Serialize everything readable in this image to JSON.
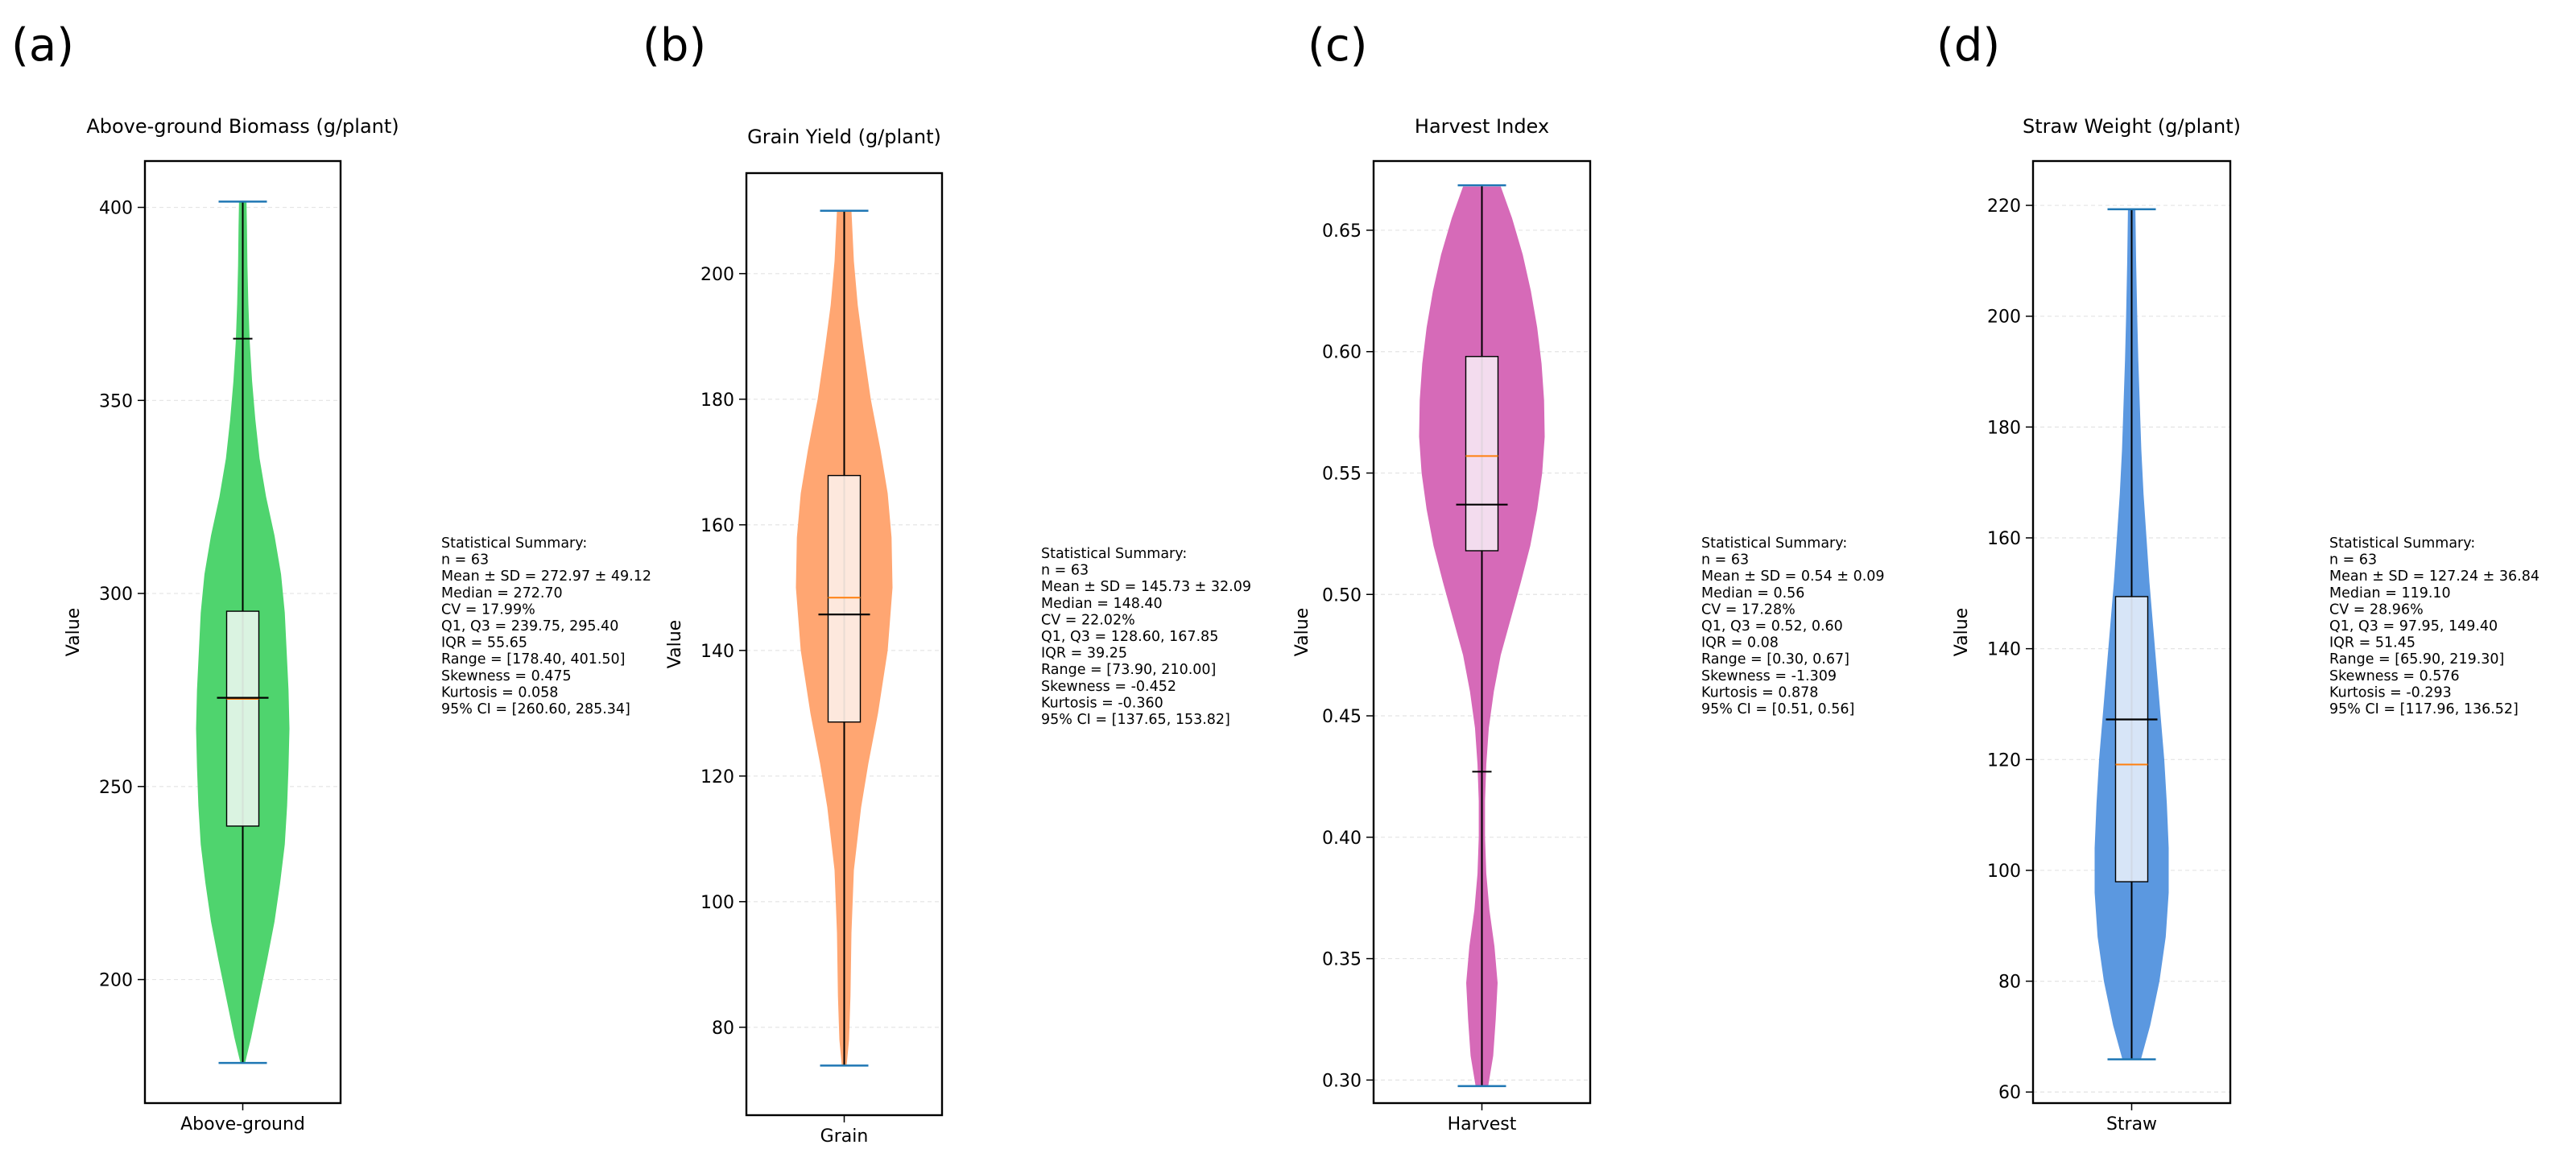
{
  "chart_data": [
    {
      "type": "violin",
      "panel_label": "(a)",
      "title": "Above-ground Biomass (g/plant)",
      "ylabel": "Value",
      "xtick": "Above-ground",
      "ylim": [
        168,
        412
      ],
      "yticks": [
        200,
        250,
        300,
        350,
        400
      ],
      "color": "#4fd46e",
      "box_color": "#e6f5ea",
      "min": 178.4,
      "max": 401.5,
      "q1": 239.75,
      "median": 272.7,
      "q3": 295.4,
      "mean": 272.97,
      "outlier_mark": 366,
      "density": [
        [
          178.4,
          0.05
        ],
        [
          185,
          0.18
        ],
        [
          195,
          0.35
        ],
        [
          205,
          0.52
        ],
        [
          215,
          0.68
        ],
        [
          225,
          0.8
        ],
        [
          235,
          0.9
        ],
        [
          245,
          0.95
        ],
        [
          255,
          0.98
        ],
        [
          265,
          1.0
        ],
        [
          275,
          0.98
        ],
        [
          285,
          0.94
        ],
        [
          295,
          0.9
        ],
        [
          305,
          0.82
        ],
        [
          315,
          0.68
        ],
        [
          325,
          0.5
        ],
        [
          335,
          0.36
        ],
        [
          345,
          0.27
        ],
        [
          355,
          0.2
        ],
        [
          365,
          0.15
        ],
        [
          375,
          0.12
        ],
        [
          385,
          0.1
        ],
        [
          395,
          0.09
        ],
        [
          401.5,
          0.08
        ]
      ],
      "stats_title": "Statistical Summary:",
      "stats": [
        "n = 63",
        "Mean ± SD = 272.97 ± 49.12",
        "Median = 272.70",
        "CV = 17.99%",
        "Q1, Q3 = 239.75, 295.40",
        "IQR = 55.65",
        "Range = [178.40, 401.50]",
        "Skewness = 0.475",
        "Kurtosis = 0.058",
        "95% CI = [260.60, 285.34]"
      ]
    },
    {
      "type": "violin",
      "panel_label": "(b)",
      "title": "Grain Yield (g/plant)",
      "ylabel": "Value",
      "xtick": "Grain",
      "ylim": [
        66,
        216
      ],
      "yticks": [
        80,
        100,
        120,
        140,
        160,
        180,
        200
      ],
      "color": "#ffa672",
      "box_color": "#fdeee6",
      "min": 73.9,
      "max": 210.0,
      "q1": 128.6,
      "median": 148.4,
      "q3": 167.85,
      "mean": 145.73,
      "density": [
        [
          73.9,
          0.05
        ],
        [
          78,
          0.1
        ],
        [
          85,
          0.13
        ],
        [
          95,
          0.15
        ],
        [
          105,
          0.2
        ],
        [
          115,
          0.35
        ],
        [
          122,
          0.5
        ],
        [
          130,
          0.7
        ],
        [
          140,
          0.9
        ],
        [
          150,
          1.0
        ],
        [
          158,
          0.98
        ],
        [
          165,
          0.9
        ],
        [
          172,
          0.75
        ],
        [
          180,
          0.55
        ],
        [
          188,
          0.4
        ],
        [
          195,
          0.28
        ],
        [
          202,
          0.2
        ],
        [
          210,
          0.15
        ]
      ],
      "stats_title": "Statistical Summary:",
      "stats": [
        "n = 63",
        "Mean ± SD = 145.73 ± 32.09",
        "Median = 148.40",
        "CV = 22.02%",
        "Q1, Q3 = 128.60, 167.85",
        "IQR = 39.25",
        "Range = [73.90, 210.00]",
        "Skewness = -0.452",
        "Kurtosis = -0.360",
        "95% CI = [137.65, 153.82]"
      ]
    },
    {
      "type": "violin",
      "panel_label": "(c)",
      "title": "Harvest Index",
      "ylabel": "Value",
      "xtick": "Harvest",
      "ylim": [
        0.2905,
        0.6785
      ],
      "yticks": [
        0.3,
        0.35,
        0.4,
        0.45,
        0.5,
        0.55,
        0.6,
        0.65
      ],
      "ytick_labels": [
        "0.30",
        "0.35",
        "0.40",
        "0.45",
        "0.50",
        "0.55",
        "0.60",
        "0.65"
      ],
      "color": "#d66ab8",
      "box_color": "#f5e6f2",
      "min": 0.2975,
      "max": 0.6685,
      "q1": 0.518,
      "median": 0.557,
      "q3": 0.598,
      "mean": 0.537,
      "outlier_mark": 0.427,
      "density": [
        [
          0.2975,
          0.1
        ],
        [
          0.31,
          0.18
        ],
        [
          0.325,
          0.22
        ],
        [
          0.34,
          0.25
        ],
        [
          0.355,
          0.2
        ],
        [
          0.37,
          0.12
        ],
        [
          0.385,
          0.07
        ],
        [
          0.4,
          0.05
        ],
        [
          0.415,
          0.05
        ],
        [
          0.43,
          0.07
        ],
        [
          0.445,
          0.11
        ],
        [
          0.46,
          0.19
        ],
        [
          0.475,
          0.3
        ],
        [
          0.49,
          0.46
        ],
        [
          0.505,
          0.62
        ],
        [
          0.52,
          0.77
        ],
        [
          0.535,
          0.88
        ],
        [
          0.55,
          0.96
        ],
        [
          0.565,
          1.0
        ],
        [
          0.58,
          0.99
        ],
        [
          0.595,
          0.95
        ],
        [
          0.61,
          0.88
        ],
        [
          0.625,
          0.78
        ],
        [
          0.64,
          0.65
        ],
        [
          0.655,
          0.48
        ],
        [
          0.668,
          0.3
        ]
      ],
      "stats_title": "Statistical Summary:",
      "stats": [
        "n = 63",
        "Mean ± SD = 0.54 ± 0.09",
        "Median = 0.56",
        "CV = 17.28%",
        "Q1, Q3 = 0.52, 0.60",
        "IQR = 0.08",
        "Range = [0.30, 0.67]",
        "Skewness = -1.309",
        "Kurtosis = 0.878",
        "95% CI = [0.51, 0.56]"
      ]
    },
    {
      "type": "violin",
      "panel_label": "(d)",
      "title": "Straw Weight (g/plant)",
      "ylabel": "Value",
      "xtick": "Straw",
      "ylim": [
        58,
        228
      ],
      "yticks": [
        60,
        80,
        100,
        120,
        140,
        160,
        180,
        200,
        220
      ],
      "color": "#5b98e0",
      "box_color": "#e2ecf8",
      "min": 65.9,
      "max": 219.3,
      "q1": 97.95,
      "median": 119.1,
      "q3": 149.4,
      "mean": 127.24,
      "density": [
        [
          65.9,
          0.25
        ],
        [
          72,
          0.5
        ],
        [
          80,
          0.75
        ],
        [
          88,
          0.92
        ],
        [
          96,
          1.0
        ],
        [
          104,
          1.0
        ],
        [
          112,
          0.95
        ],
        [
          120,
          0.88
        ],
        [
          128,
          0.78
        ],
        [
          136,
          0.68
        ],
        [
          144,
          0.58
        ],
        [
          152,
          0.48
        ],
        [
          160,
          0.4
        ],
        [
          168,
          0.32
        ],
        [
          176,
          0.26
        ],
        [
          184,
          0.22
        ],
        [
          192,
          0.18
        ],
        [
          200,
          0.15
        ],
        [
          210,
          0.12
        ],
        [
          219.3,
          0.1
        ]
      ],
      "stats_title": "Statistical Summary:",
      "stats": [
        "n = 63",
        "Mean ± SD = 127.24 ± 36.84",
        "Median = 119.10",
        "CV = 28.96%",
        "Q1, Q3 = 97.95, 149.40",
        "IQR = 51.45",
        "Range = [65.90, 219.30]",
        "Skewness = 0.576",
        "Kurtosis = -0.293",
        "95% CI = [117.96, 136.52]"
      ]
    }
  ]
}
